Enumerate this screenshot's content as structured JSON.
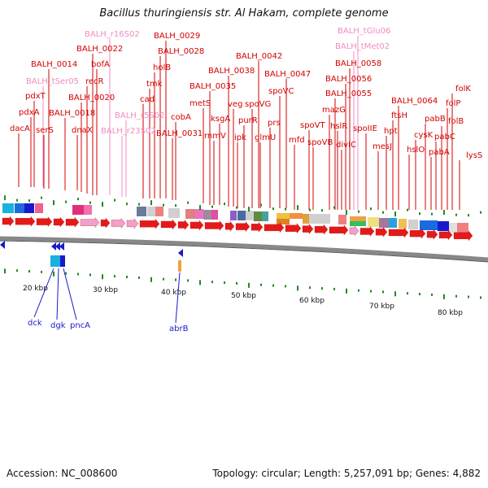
{
  "header": {
    "title": "Bacillus thuringiensis str. Al Hakam, complete genome"
  },
  "footer": {
    "accession": "Accession: NC_008600",
    "summary": "Topology: circular; Length: 5,257,091 bp; Genes: 4,882"
  },
  "colors": {
    "gene_label": "#d40000",
    "rna_label": "#f08cc0",
    "reverse_label": "#1a1acc",
    "backbone": "#888888",
    "tick": "#1f8a1f"
  },
  "scale_ticks": [
    "20 kbp",
    "30 kbp",
    "40 kbp",
    "50 kbp",
    "60 kbp",
    "70 kbp",
    "80 kbp"
  ],
  "top_genes": [
    "dacA",
    "pdxA",
    "pdxT",
    "BALH_tSer05",
    "BALH_0014",
    "serS",
    "BALH_0018",
    "dnaX",
    "BALH_0020",
    "recR",
    "BALH_0022",
    "bofA",
    "BALH_r16S02",
    "BALH_r23S02",
    "BALH_r5S02",
    "cad",
    "tmk",
    "holB",
    "BALH_0028",
    "BALH_0029",
    "BALH_0031",
    "cobA",
    "metS",
    "BALH_0035",
    "rnmV",
    "ksgA",
    "BALH_0038",
    "veg",
    "ipk",
    "purR",
    "spoVG",
    "BALH_0042",
    "glmU",
    "prs",
    "spoVC",
    "BALH_0047",
    "mfd",
    "spoVT",
    "spoVB",
    "mazG",
    "BALH_0055",
    "hslR",
    "divIC",
    "BALH_0056",
    "BALH_0058",
    "BALH_tMet02",
    "BALH_tGlu06",
    "spoIIE",
    "mesJ",
    "hpt",
    "ftsH",
    "BALH_0064",
    "hslO",
    "cysK",
    "pabB",
    "pabA",
    "pabC",
    "folB",
    "folP",
    "folK",
    "lysS"
  ],
  "bottom_genes": [
    "dck",
    "dgk",
    "pncA",
    "abrB"
  ]
}
